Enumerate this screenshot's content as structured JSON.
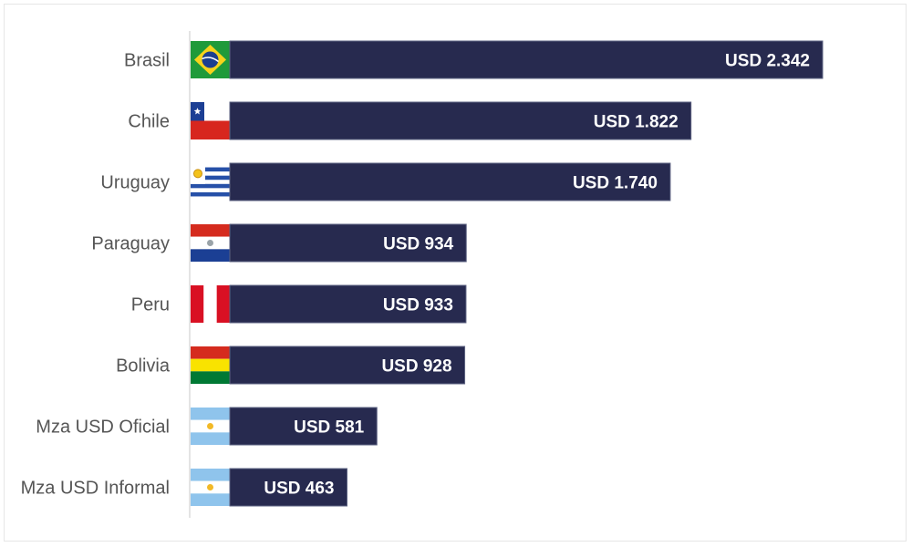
{
  "chart_data": {
    "type": "bar",
    "orientation": "horizontal",
    "categories": [
      "Brasil",
      "Chile",
      "Uruguay",
      "Paraguay",
      "Peru",
      "Bolivia",
      "Mza USD Oficial",
      "Mza USD Informal"
    ],
    "values": [
      2342,
      1822,
      1740,
      934,
      933,
      928,
      581,
      463
    ],
    "value_labels": [
      "USD 2.342",
      "USD 1.822",
      "USD 1.740",
      "USD 934",
      "USD 933",
      "USD 928",
      "USD 581",
      "USD 463"
    ],
    "flags": [
      "brazil-flag",
      "chile-flag",
      "uruguay-flag",
      "paraguay-flag",
      "peru-flag",
      "bolivia-flag",
      "argentina-flag",
      "argentina-flag"
    ],
    "title": "",
    "xlabel": "",
    "ylabel": "",
    "xlim": [
      0,
      2342
    ],
    "grid": false,
    "legend": "none",
    "colors": {
      "bar": "#272a4f",
      "bar_border": "#5b6180",
      "label_text": "#ffffff",
      "category_text": "#555555"
    }
  }
}
